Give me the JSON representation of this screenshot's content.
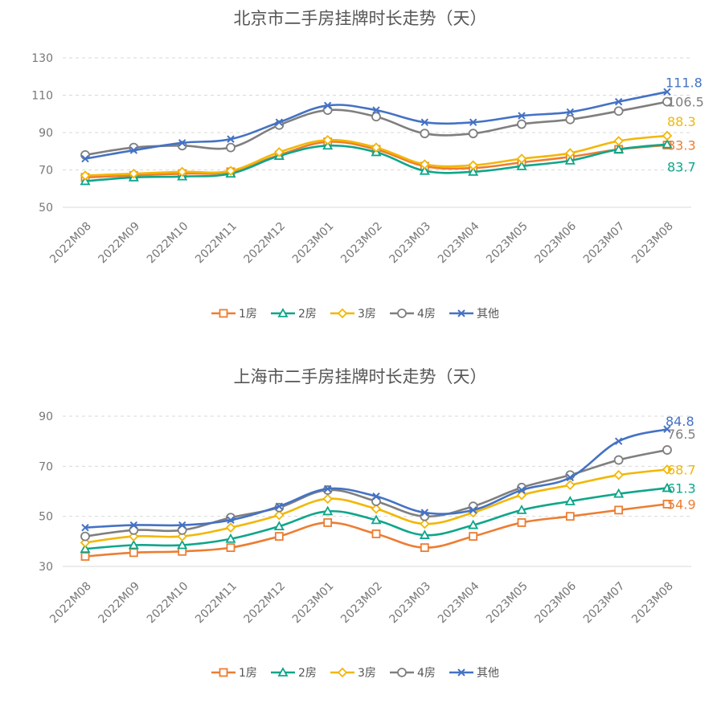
{
  "colors": {
    "1房": "#ED7D31",
    "2房": "#0FA68A",
    "3房": "#F2B705",
    "4房": "#7F7F7F",
    "其他": "#4472C4"
  },
  "chart_data": [
    {
      "type": "line",
      "title": "北京市二手房挂牌时长走势（天）",
      "categories": [
        "2022M08",
        "2022M09",
        "2022M10",
        "2022M11",
        "2022M12",
        "2023M01",
        "2023M02",
        "2023M03",
        "2023M04",
        "2023M05",
        "2023M06",
        "2023M07",
        "2023M08"
      ],
      "ylim": [
        50,
        130
      ],
      "yticks": [
        50,
        70,
        90,
        110,
        130
      ],
      "grid": true,
      "legend": "bottom",
      "series": [
        {
          "name": "1房",
          "marker": "square",
          "values": [
            66,
            67,
            68,
            69,
            78,
            85,
            81,
            72,
            71,
            74,
            77,
            81,
            83.3
          ],
          "end_label": "83.3"
        },
        {
          "name": "2房",
          "marker": "triangle",
          "values": [
            64,
            66,
            66.5,
            68,
            77.5,
            83,
            79.5,
            69.5,
            69,
            72,
            75,
            81,
            83.7
          ],
          "end_label": "83.7"
        },
        {
          "name": "3房",
          "marker": "diamond",
          "values": [
            67,
            68,
            69,
            69.5,
            79.5,
            86,
            82,
            73,
            72.5,
            76,
            79,
            85.5,
            88.3
          ],
          "end_label": "88.3"
        },
        {
          "name": "4房",
          "marker": "circle",
          "values": [
            78,
            82,
            83,
            82,
            94,
            102,
            98.5,
            89.5,
            89.5,
            94.5,
            97,
            101.5,
            106.5
          ],
          "end_label": "106.5"
        },
        {
          "name": "其他",
          "marker": "x",
          "values": [
            76,
            80.5,
            84.5,
            86.5,
            95.5,
            104.5,
            102,
            95.5,
            95.5,
            99,
            101,
            106.5,
            111.8
          ],
          "end_label": "111.8"
        }
      ]
    },
    {
      "type": "line",
      "title": "上海市二手房挂牌时长走势（天）",
      "categories": [
        "2022M08",
        "2022M09",
        "2022M10",
        "2022M11",
        "2022M12",
        "2023M01",
        "2023M02",
        "2023M03",
        "2023M04",
        "2023M05",
        "2023M06",
        "2023M07",
        "2023M08"
      ],
      "ylim": [
        30,
        90
      ],
      "yticks": [
        30,
        50,
        70,
        90
      ],
      "grid": true,
      "legend": "bottom",
      "series": [
        {
          "name": "1房",
          "marker": "square",
          "values": [
            34,
            35.5,
            36,
            37.5,
            42,
            47.5,
            43,
            37.5,
            42,
            47.5,
            50,
            52.5,
            54.9
          ],
          "end_label": "54.9"
        },
        {
          "name": "2房",
          "marker": "triangle",
          "values": [
            37,
            38.5,
            38.5,
            41,
            46,
            52,
            48.5,
            42.5,
            46.5,
            52.5,
            56,
            59,
            61.3
          ],
          "end_label": "61.3"
        },
        {
          "name": "3房",
          "marker": "diamond",
          "values": [
            39.5,
            42,
            42,
            45.5,
            50.5,
            57,
            53,
            47,
            51.5,
            58.5,
            62.5,
            66.5,
            68.7
          ],
          "end_label": "68.7"
        },
        {
          "name": "4房",
          "marker": "circle",
          "values": [
            42,
            44.5,
            44.5,
            49.5,
            53.5,
            60.5,
            56,
            50,
            54,
            61.5,
            66.5,
            72.5,
            76.5
          ],
          "end_label": "76.5"
        },
        {
          "name": "其他",
          "marker": "x",
          "values": [
            45.5,
            46.5,
            46.5,
            48.5,
            54,
            61,
            58,
            51.5,
            52.5,
            60.5,
            65.5,
            80,
            84.8
          ],
          "end_label": "84.8"
        }
      ]
    }
  ]
}
